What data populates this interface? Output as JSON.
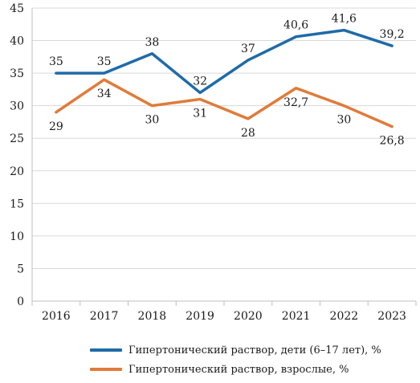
{
  "chart_data": {
    "type": "line",
    "categories": [
      "2016",
      "2017",
      "2018",
      "2019",
      "2020",
      "2021",
      "2022",
      "2023"
    ],
    "ylim": [
      0,
      45
    ],
    "yticks": [
      0,
      5,
      10,
      15,
      20,
      25,
      30,
      35,
      40,
      45
    ],
    "grid": true,
    "legend_position": "bottom",
    "series": [
      {
        "name": "Гипертонический раствор, дети (6–17 лет), %",
        "color": "#1f6ba8",
        "values": [
          35,
          35,
          38,
          32,
          37,
          40.6,
          41.6,
          39.2
        ],
        "labels": [
          "35",
          "35",
          "38",
          "32",
          "37",
          "40,6",
          "41,6",
          "39,2"
        ]
      },
      {
        "name": "Гипертонический раствор, взрослые, %",
        "color": "#e07b39",
        "values": [
          29,
          34,
          30,
          31,
          28,
          32.7,
          30,
          26.8
        ],
        "labels": [
          "29",
          "34",
          "30",
          "31",
          "28",
          "32,7",
          "30",
          "26,8"
        ]
      }
    ]
  }
}
